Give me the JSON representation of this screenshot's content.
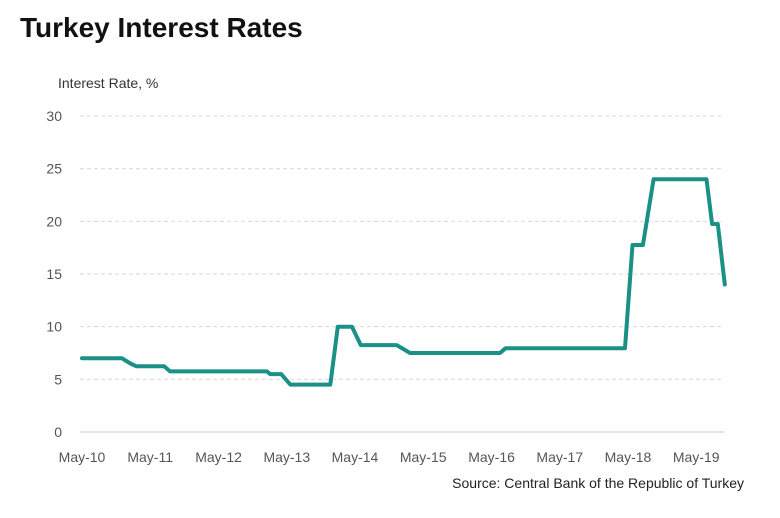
{
  "chart_data": {
    "type": "line",
    "title": "Turkey Interest Rates",
    "ylabel": "Interest Rate, %",
    "xlabel": "",
    "source": "Source: Central Bank of the Republic of Turkey",
    "ylim": [
      0,
      30
    ],
    "yticks": [
      0,
      5,
      10,
      15,
      20,
      25,
      30
    ],
    "xlim": [
      "2010-05-01",
      "2019-10-01"
    ],
    "xticks": [
      {
        "date": "2010-05-01",
        "label": "May-10"
      },
      {
        "date": "2011-05-01",
        "label": "May-11"
      },
      {
        "date": "2012-05-01",
        "label": "May-12"
      },
      {
        "date": "2013-05-01",
        "label": "May-13"
      },
      {
        "date": "2014-05-01",
        "label": "May-14"
      },
      {
        "date": "2015-05-01",
        "label": "May-15"
      },
      {
        "date": "2016-05-01",
        "label": "May-16"
      },
      {
        "date": "2017-05-01",
        "label": "May-17"
      },
      {
        "date": "2018-05-01",
        "label": "May-18"
      },
      {
        "date": "2019-05-01",
        "label": "May-19"
      }
    ],
    "grid": true,
    "series": [
      {
        "color": "#1a9087",
        "points": [
          {
            "x": "2010-05-01",
            "y": 7.0
          },
          {
            "x": "2010-12-01",
            "y": 7.0
          },
          {
            "x": "2011-01-15",
            "y": 6.5
          },
          {
            "x": "2011-02-15",
            "y": 6.25
          },
          {
            "x": "2011-07-15",
            "y": 6.25
          },
          {
            "x": "2011-08-15",
            "y": 5.75
          },
          {
            "x": "2013-01-15",
            "y": 5.75
          },
          {
            "x": "2013-02-01",
            "y": 5.5
          },
          {
            "x": "2013-04-01",
            "y": 5.5
          },
          {
            "x": "2013-05-20",
            "y": 4.5
          },
          {
            "x": "2013-12-20",
            "y": 4.5
          },
          {
            "x": "2014-01-29",
            "y": 10.0
          },
          {
            "x": "2014-04-15",
            "y": 10.0
          },
          {
            "x": "2014-06-01",
            "y": 8.25
          },
          {
            "x": "2014-12-10",
            "y": 8.25
          },
          {
            "x": "2015-02-20",
            "y": 7.5
          },
          {
            "x": "2016-06-15",
            "y": 7.5
          },
          {
            "x": "2016-07-15",
            "y": 7.96
          },
          {
            "x": "2018-04-15",
            "y": 7.96
          },
          {
            "x": "2018-05-25",
            "y": 17.75
          },
          {
            "x": "2018-07-20",
            "y": 17.75
          },
          {
            "x": "2018-09-15",
            "y": 24.0
          },
          {
            "x": "2019-06-25",
            "y": 24.0
          },
          {
            "x": "2019-07-25",
            "y": 19.75
          },
          {
            "x": "2019-08-25",
            "y": 19.75
          },
          {
            "x": "2019-10-01",
            "y": 14.0
          }
        ]
      }
    ]
  }
}
